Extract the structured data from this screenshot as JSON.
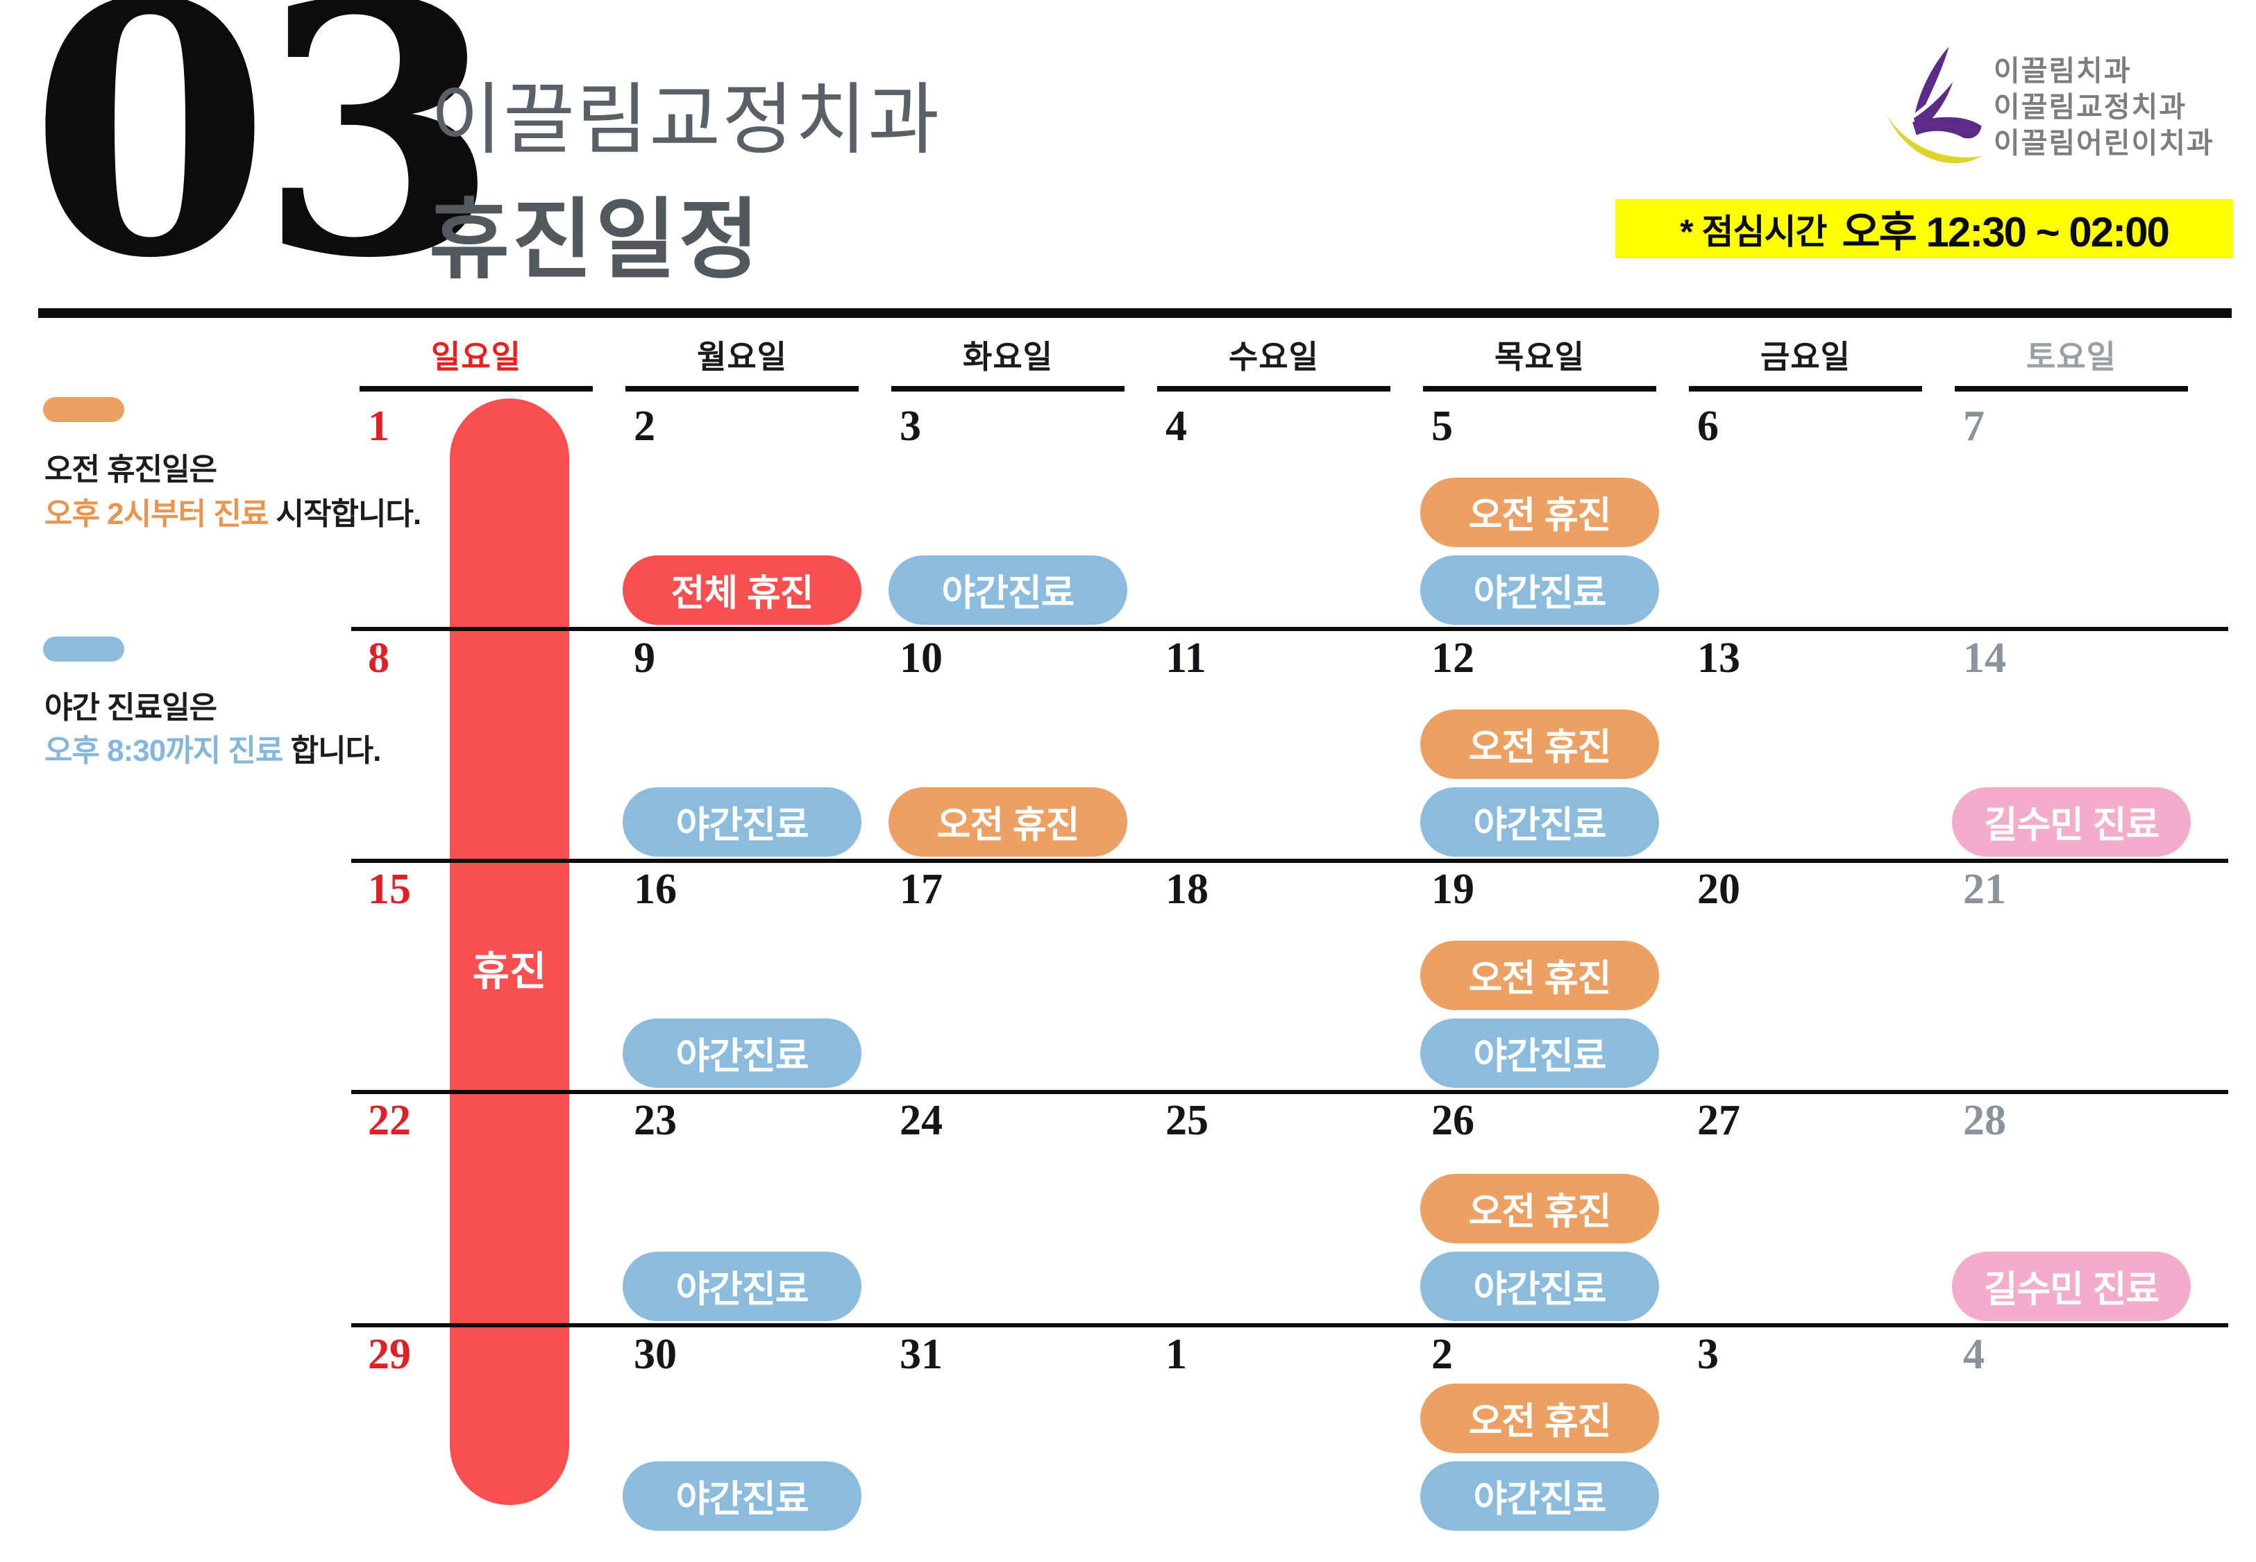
{
  "header": {
    "month_number": "03",
    "clinic_name": "이끌림교정치과",
    "page_title": "휴진일정",
    "logo_lines": [
      "이끌림치과",
      "이끌림교정치과",
      "이끌림어린이치과"
    ],
    "lunch_label": "* 점심시간",
    "lunch_time": "오후 12:30 ~ 02:00",
    "banner_bg": "#ffff00",
    "logo_purple": "#5b2b87",
    "logo_yellow": "#ddd32b"
  },
  "legend": {
    "morning": {
      "swatch_color": "#eca064",
      "line1": "오전 휴진일은",
      "highlight": "오후 2시부터 진료",
      "rest": " 시작합니다.",
      "highlight_color": "#e8954f"
    },
    "night": {
      "swatch_color": "#8bbcde",
      "line1": "야간 진료일은",
      "highlight": "오후 8:30까지 진료",
      "rest": " 합니다.",
      "highlight_color": "#85b7dc"
    }
  },
  "calendar": {
    "weekdays": [
      {
        "label": "일요일",
        "color": "#e8201f"
      },
      {
        "label": "월요일",
        "color": "#1a1a1a"
      },
      {
        "label": "화요일",
        "color": "#1a1a1a"
      },
      {
        "label": "수요일",
        "color": "#1a1a1a"
      },
      {
        "label": "목요일",
        "color": "#1a1a1a"
      },
      {
        "label": "금요일",
        "color": "#1a1a1a"
      },
      {
        "label": "토요일",
        "color": "#9aa0a6"
      }
    ],
    "date_colors": {
      "sun": "#dd2127",
      "normal": "#141517",
      "sat": "#8c9299"
    },
    "pill_colors": {
      "all": "#f94f50",
      "morning": "#eca064",
      "night": "#8bbcde",
      "doctor": "#f3adca"
    },
    "band": {
      "label": "휴진",
      "color": "#f94f50"
    },
    "weeks": [
      {
        "days": [
          {
            "date": "1",
            "tone": "sun",
            "pills": []
          },
          {
            "date": "2",
            "tone": "normal",
            "pills": [
              {
                "slot": "bottom",
                "type": "all",
                "label": "전체 휴진"
              }
            ]
          },
          {
            "date": "3",
            "tone": "normal",
            "pills": [
              {
                "slot": "bottom",
                "type": "night",
                "label": "야간진료"
              }
            ]
          },
          {
            "date": "4",
            "tone": "normal",
            "pills": []
          },
          {
            "date": "5",
            "tone": "normal",
            "pills": [
              {
                "slot": "top",
                "type": "morning",
                "label": "오전 휴진"
              },
              {
                "slot": "bottom",
                "type": "night",
                "label": "야간진료"
              }
            ]
          },
          {
            "date": "6",
            "tone": "normal",
            "pills": []
          },
          {
            "date": "7",
            "tone": "sat",
            "pills": []
          }
        ]
      },
      {
        "days": [
          {
            "date": "8",
            "tone": "sun",
            "pills": []
          },
          {
            "date": "9",
            "tone": "normal",
            "pills": [
              {
                "slot": "bottom",
                "type": "night",
                "label": "야간진료"
              }
            ]
          },
          {
            "date": "10",
            "tone": "normal",
            "pills": [
              {
                "slot": "bottom",
                "type": "morning",
                "label": "오전 휴진"
              }
            ]
          },
          {
            "date": "11",
            "tone": "normal",
            "pills": []
          },
          {
            "date": "12",
            "tone": "normal",
            "pills": [
              {
                "slot": "top",
                "type": "morning",
                "label": "오전 휴진"
              },
              {
                "slot": "bottom",
                "type": "night",
                "label": "야간진료"
              }
            ]
          },
          {
            "date": "13",
            "tone": "normal",
            "pills": []
          },
          {
            "date": "14",
            "tone": "sat",
            "pills": [
              {
                "slot": "bottom",
                "type": "doctor",
                "label": "길수민 진료"
              }
            ]
          }
        ]
      },
      {
        "days": [
          {
            "date": "15",
            "tone": "sun",
            "pills": []
          },
          {
            "date": "16",
            "tone": "normal",
            "pills": [
              {
                "slot": "bottom",
                "type": "night",
                "label": "야간진료"
              }
            ]
          },
          {
            "date": "17",
            "tone": "normal",
            "pills": []
          },
          {
            "date": "18",
            "tone": "normal",
            "pills": []
          },
          {
            "date": "19",
            "tone": "normal",
            "pills": [
              {
                "slot": "top",
                "type": "morning",
                "label": "오전 휴진"
              },
              {
                "slot": "bottom",
                "type": "night",
                "label": "야간진료"
              }
            ]
          },
          {
            "date": "20",
            "tone": "normal",
            "pills": []
          },
          {
            "date": "21",
            "tone": "sat",
            "pills": []
          }
        ]
      },
      {
        "days": [
          {
            "date": "22",
            "tone": "sun",
            "pills": []
          },
          {
            "date": "23",
            "tone": "normal",
            "pills": [
              {
                "slot": "bottom",
                "type": "night",
                "label": "야간진료"
              }
            ]
          },
          {
            "date": "24",
            "tone": "normal",
            "pills": []
          },
          {
            "date": "25",
            "tone": "normal",
            "pills": []
          },
          {
            "date": "26",
            "tone": "normal",
            "pills": [
              {
                "slot": "top",
                "type": "morning",
                "label": "오전 휴진"
              },
              {
                "slot": "bottom",
                "type": "night",
                "label": "야간진료"
              }
            ]
          },
          {
            "date": "27",
            "tone": "normal",
            "pills": []
          },
          {
            "date": "28",
            "tone": "sat",
            "pills": [
              {
                "slot": "bottom",
                "type": "doctor",
                "label": "길수민 진료"
              }
            ]
          }
        ]
      },
      {
        "days": [
          {
            "date": "29",
            "tone": "sun",
            "pills": []
          },
          {
            "date": "30",
            "tone": "normal",
            "pills": [
              {
                "slot": "bottom",
                "type": "night",
                "label": "야간진료"
              }
            ]
          },
          {
            "date": "31",
            "tone": "normal",
            "pills": []
          },
          {
            "date": "1",
            "tone": "normal",
            "pills": []
          },
          {
            "date": "2",
            "tone": "normal",
            "pills": [
              {
                "slot": "top",
                "type": "morning",
                "label": "오전 휴진"
              },
              {
                "slot": "bottom",
                "type": "night",
                "label": "야간진료"
              }
            ]
          },
          {
            "date": "3",
            "tone": "normal",
            "pills": []
          },
          {
            "date": "4",
            "tone": "sat",
            "pills": []
          }
        ]
      }
    ]
  }
}
